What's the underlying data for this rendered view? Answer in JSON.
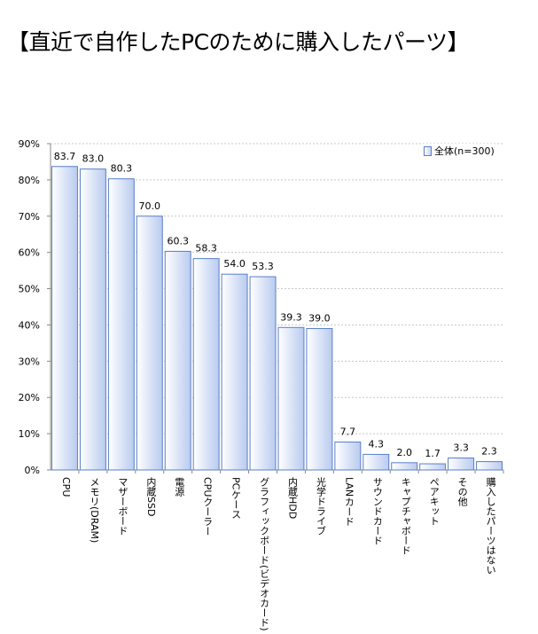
{
  "chart_data": {
    "type": "bar",
    "title": "【直近で自作したPCのために購入したパーツ】",
    "categories": [
      "CPU",
      "メモリ(DRAM)",
      "マザーボード",
      "内蔵SSD",
      "電源",
      "CPUクーラー",
      "PCケース",
      "グラフィックボード(ビデオカード)",
      "内蔵HDD",
      "光学ドライブ",
      "LANカード",
      "サウンドカード",
      "キャプチャボード",
      "ペアキット",
      "その他",
      "購入したパーツはない"
    ],
    "series": [
      {
        "name": "全体(n=300)",
        "values": [
          83.7,
          83.0,
          80.3,
          70.0,
          60.3,
          58.3,
          54.0,
          53.3,
          39.3,
          39.0,
          7.7,
          4.3,
          2.0,
          1.7,
          3.3,
          2.3
        ]
      }
    ],
    "ylim": [
      0,
      90
    ],
    "yticks": [
      "0%",
      "10%",
      "20%",
      "30%",
      "40%",
      "50%",
      "60%",
      "70%",
      "80%",
      "90%"
    ],
    "grid": true,
    "legend": "top-right",
    "colors": {
      "bar_edge": "#5a7fc8",
      "bar_light": "#ffffff",
      "bar_dark": "#b9cbef",
      "grid": "#c8c8c8"
    }
  }
}
